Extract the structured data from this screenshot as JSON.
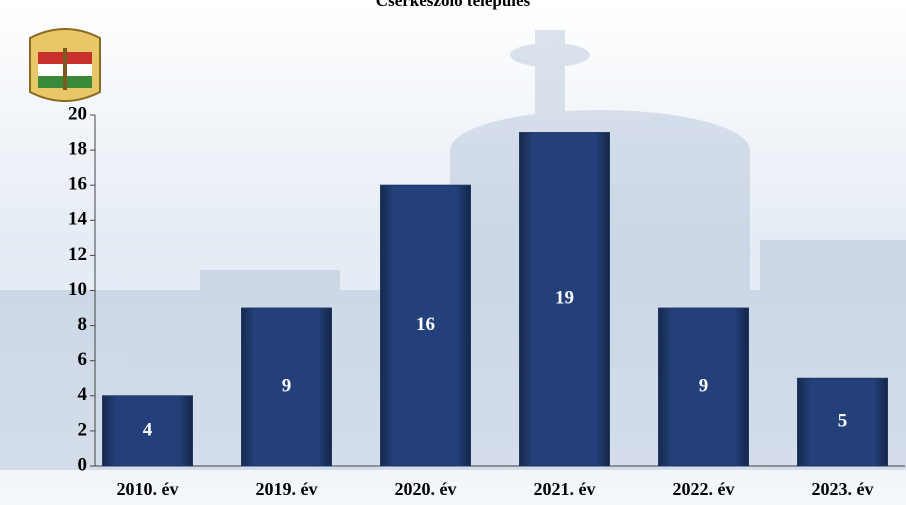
{
  "chart_data": {
    "type": "bar",
    "title": "Cserkeszőlő település",
    "categories": [
      "2010. év",
      "2019. év",
      "2020. év",
      "2021. év",
      "2022. év",
      "2023. év"
    ],
    "values": [
      4,
      9,
      16,
      19,
      9,
      5
    ],
    "color": "#1f3864",
    "ylim": [
      0,
      20
    ],
    "yticks": [
      0,
      2,
      4,
      6,
      8,
      10,
      12,
      14,
      16,
      18,
      20
    ],
    "grid": false
  }
}
